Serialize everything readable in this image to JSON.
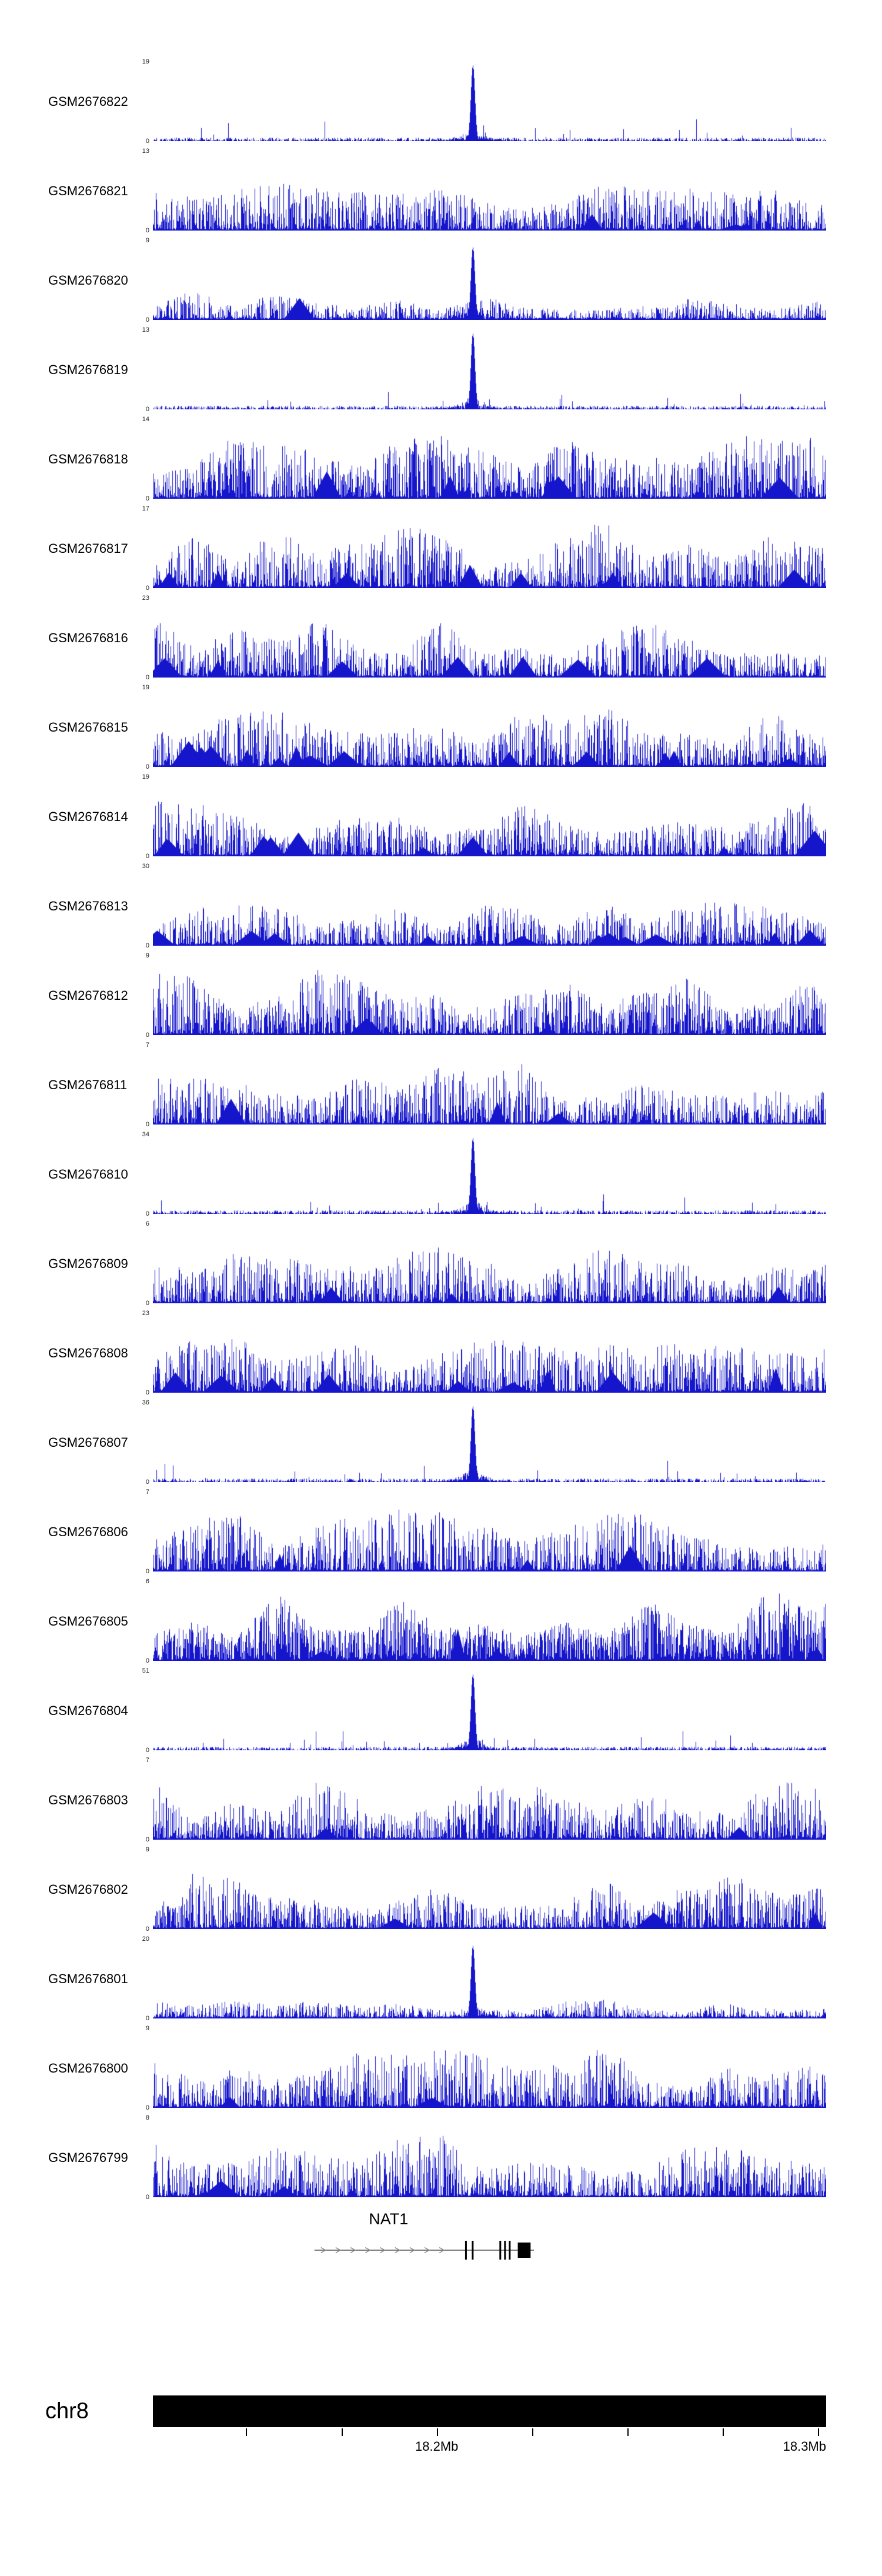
{
  "figure": {
    "background": "#ffffff",
    "signal_color": "#1515cc",
    "axis_color": "#222222"
  },
  "chart_data": {
    "type": "area",
    "description": "Genome browser read-coverage signal tracks for 24 GEO samples over a region of chromosome 8 containing the NAT1 gene",
    "y_axis_zero_label": "0",
    "peak_position": 0.475,
    "tracks": [
      {
        "label": "GSM2676822",
        "ymax": 19,
        "profile": "peak",
        "seed": 101
      },
      {
        "label": "GSM2676821",
        "ymax": 13,
        "profile": "dense",
        "seed": 102,
        "amp": 0.62,
        "triangles": 2
      },
      {
        "label": "GSM2676820",
        "ymax": 9,
        "profile": "peaky-dense",
        "seed": 103,
        "amp": 0.72,
        "triangles": 1
      },
      {
        "label": "GSM2676819",
        "ymax": 13,
        "profile": "peak",
        "seed": 104
      },
      {
        "label": "GSM2676818",
        "ymax": 14,
        "profile": "dense",
        "seed": 105,
        "amp": 0.85,
        "exp": 1.8,
        "triangles": 4
      },
      {
        "label": "GSM2676817",
        "ymax": 17,
        "profile": "dense",
        "seed": 106,
        "amp": 0.9,
        "triangles": 7
      },
      {
        "label": "GSM2676816",
        "ymax": 23,
        "profile": "dense",
        "seed": 107,
        "amp": 0.78,
        "triangles": 9
      },
      {
        "label": "GSM2676815",
        "ymax": 19,
        "profile": "dense",
        "seed": 108,
        "amp": 0.85,
        "triangles": 14
      },
      {
        "label": "GSM2676814",
        "ymax": 19,
        "profile": "dense",
        "seed": 109,
        "amp": 0.78,
        "triangles": 9
      },
      {
        "label": "GSM2676813",
        "ymax": 30,
        "profile": "dense",
        "seed": 110,
        "amp": 0.6,
        "triangles": 12
      },
      {
        "label": "GSM2676812",
        "ymax": 9,
        "profile": "dense",
        "seed": 111,
        "amp": 0.85,
        "exp": 1.9,
        "triangles": 2
      },
      {
        "label": "GSM2676811",
        "ymax": 7,
        "profile": "dense",
        "seed": 112,
        "amp": 0.8,
        "triangles": 3
      },
      {
        "label": "GSM2676810",
        "ymax": 34,
        "profile": "peak",
        "seed": 113
      },
      {
        "label": "GSM2676809",
        "ymax": 6,
        "profile": "dense",
        "seed": 114,
        "amp": 0.75,
        "triangles": 3
      },
      {
        "label": "GSM2676808",
        "ymax": 23,
        "profile": "dense",
        "seed": 115,
        "amp": 0.8,
        "triangles": 10
      },
      {
        "label": "GSM2676807",
        "ymax": 36,
        "profile": "peak",
        "seed": 116
      },
      {
        "label": "GSM2676806",
        "ymax": 7,
        "profile": "dense",
        "seed": 117,
        "amp": 0.8,
        "triangles": 3
      },
      {
        "label": "GSM2676805",
        "ymax": 6,
        "profile": "dense",
        "seed": 118,
        "amp": 0.97,
        "exp": 1.3,
        "triangles": 4
      },
      {
        "label": "GSM2676804",
        "ymax": 51,
        "profile": "peak",
        "seed": 119
      },
      {
        "label": "GSM2676803",
        "ymax": 7,
        "profile": "dense",
        "seed": 120,
        "amp": 0.8,
        "triangles": 2
      },
      {
        "label": "GSM2676802",
        "ymax": 9,
        "profile": "dense",
        "seed": 121,
        "amp": 0.78,
        "triangles": 3
      },
      {
        "label": "GSM2676801",
        "ymax": 20,
        "profile": "peaky-dense",
        "seed": 122,
        "amp": 0.5,
        "triangles": 0
      },
      {
        "label": "GSM2676800",
        "ymax": 9,
        "profile": "dense",
        "seed": 123,
        "amp": 0.8,
        "triangles": 2
      },
      {
        "label": "GSM2676799",
        "ymax": 8,
        "profile": "dense",
        "seed": 124,
        "amp": 0.85,
        "triangles": 2
      }
    ],
    "gene_track": {
      "gene": "NAT1",
      "strand": "+",
      "line_start": 0.24,
      "line_end": 0.566,
      "arrow_start": 0.253,
      "arrow_end": 0.45,
      "arrow_step": 0.022,
      "thin_exons": [
        0.465,
        0.475,
        0.516,
        0.523,
        0.53
      ],
      "thick_exon": [
        0.542,
        0.561
      ],
      "label_position": 0.35
    },
    "ideogram": {
      "label": "chr8"
    },
    "ruler": {
      "unit_labels": [
        {
          "label": "18.2Mb",
          "position": 0.4216,
          "align": "center"
        },
        {
          "label": "18.3Mb",
          "position": 0.988,
          "align": "right"
        }
      ],
      "minor_ticks": [
        0.138,
        0.28,
        0.563,
        0.705,
        0.846
      ]
    }
  }
}
